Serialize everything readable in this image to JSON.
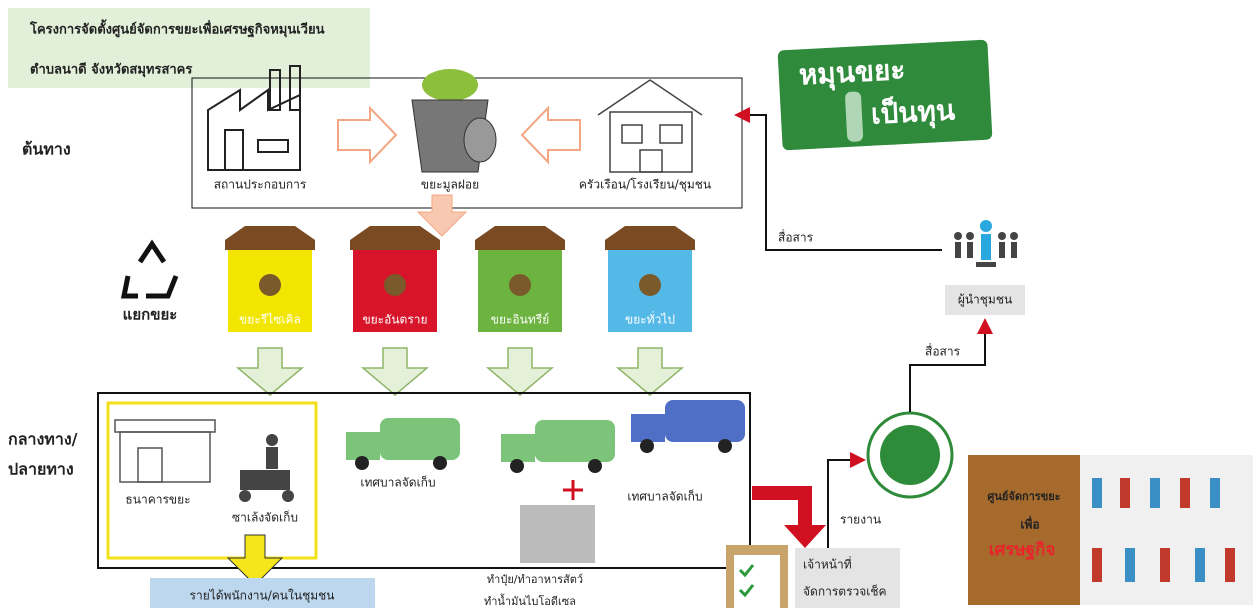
{
  "header": {
    "title": [
      "โครงการจัดตั้งศูนย์จัดการขยะเพื่อเศรษฐกิจหมุนเวียน",
      "ตำบลนาดี จังหวัดสมุทรสาคร"
    ]
  },
  "logo": {
    "line1": "หมุนขยะ",
    "line2": "เป็นทุน"
  },
  "upstream": {
    "label": "ต้นทาง",
    "sources": [
      "สถานประกอบการ",
      "ขยะมูลฝอย",
      "ครัวเรือน/โรงเรียน/ชุมชน"
    ]
  },
  "communicate": [
    "สื่อสาร",
    "สื่อสาร"
  ],
  "leader": "ผู้นำชุมชน",
  "sorting": {
    "label": "แยกขยะ",
    "bins": [
      "ขยะรีไซเคิล",
      "ขยะอันตราย",
      "ขยะอินทรีย์",
      "ขยะทั่วไป"
    ]
  },
  "midstream": {
    "label": [
      "กลางทาง/",
      "ปลายทาง"
    ],
    "items": [
      "ธนาคารขยะ",
      "ซาเล้งจัดเก็บ",
      "เทศบาลจัดเก็บ",
      "เทศบาลจัดเก็บ"
    ],
    "products": [
      "ทำปุ๋ย/ทำอาหารสัตว์",
      "ทำน้ำมันไบโอดีเซล"
    ]
  },
  "income": "รายได้พนักงาน/คนในชุมชน",
  "report": "รายงาน",
  "officer": [
    "เจ้าหน้าที่",
    "จัดการตรวจเช็ค"
  ],
  "center_logo": [
    "ศูนย์จัดการขยะ",
    "เพื่อ",
    "เศรษฐกิจ"
  ]
}
